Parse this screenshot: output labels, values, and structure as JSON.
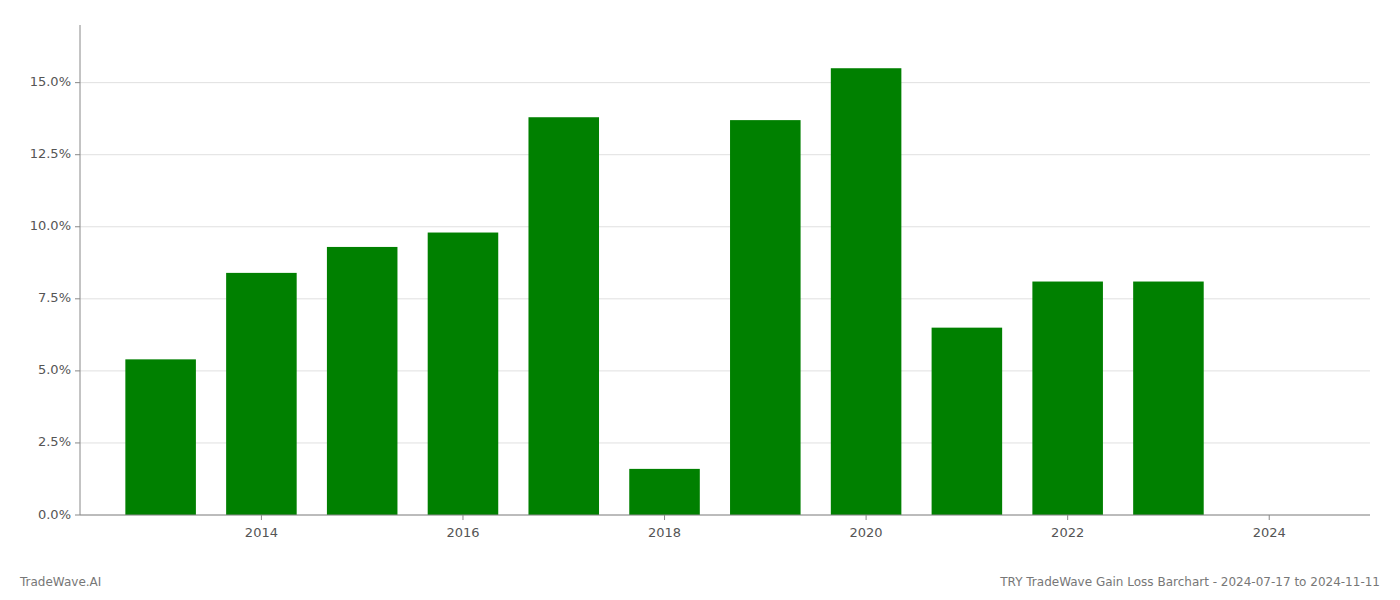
{
  "chart_data": {
    "type": "bar",
    "x": [
      2013,
      2014,
      2015,
      2016,
      2017,
      2018,
      2019,
      2020,
      2021,
      2022,
      2023
    ],
    "values": [
      0.054,
      0.084,
      0.093,
      0.098,
      0.138,
      0.016,
      0.137,
      0.155,
      0.065,
      0.081,
      0.081
    ],
    "color": "#008000",
    "xlim": [
      2012.2,
      2025.0
    ],
    "xticks": [
      2014,
      2016,
      2018,
      2020,
      2022,
      2024
    ],
    "ylim": [
      0,
      0.17
    ],
    "yticks": [
      {
        "value": 0.0,
        "label": "0.0%"
      },
      {
        "value": 0.025,
        "label": "2.5%"
      },
      {
        "value": 0.05,
        "label": "5.0%"
      },
      {
        "value": 0.075,
        "label": "7.5%"
      },
      {
        "value": 0.1,
        "label": "10.0%"
      },
      {
        "value": 0.125,
        "label": "12.5%"
      },
      {
        "value": 0.15,
        "label": "15.0%"
      }
    ],
    "grid": true,
    "annotations": [
      "TradeWave.AI",
      "TRY TradeWave Gain Loss Barchart - 2024-07-17 to 2024-11-11"
    ]
  }
}
